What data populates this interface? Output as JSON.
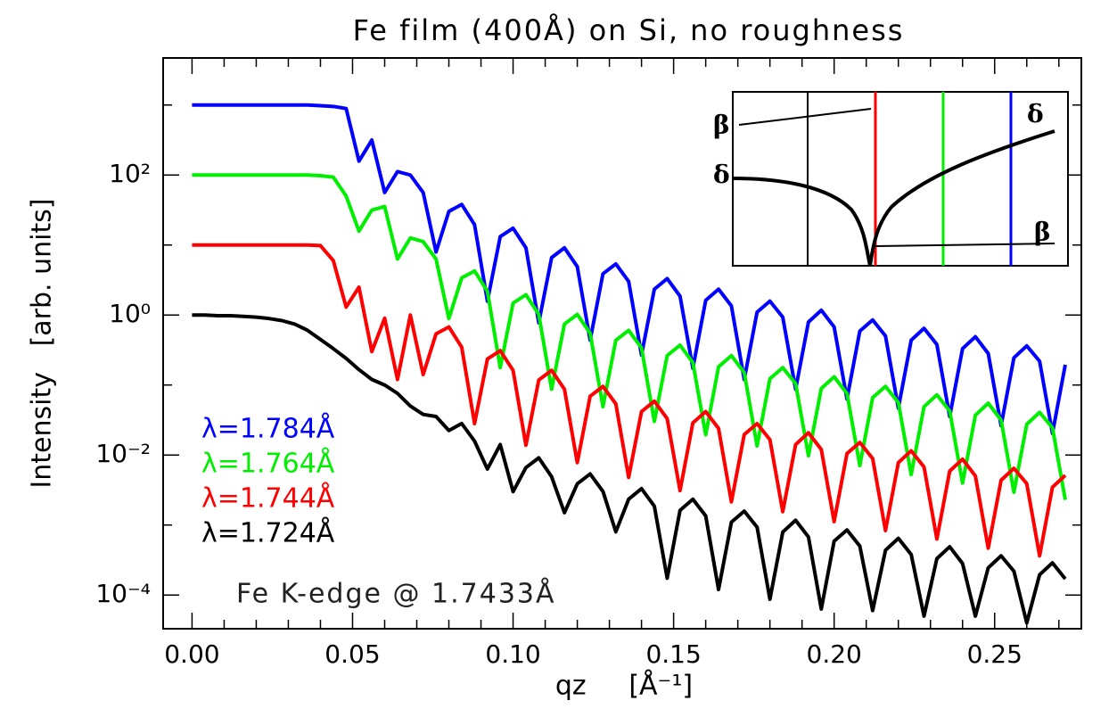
{
  "chart_data": {
    "type": "line",
    "title": "Fe film (400Å) on Si, no roughness",
    "x_label": "qz     [Å⁻¹]",
    "y_label": "Intensity   [arb. units]",
    "annotation": "Fe K-edge @ 1.7433Å",
    "log_y": true,
    "xlim": [
      -0.009,
      0.277
    ],
    "ylim": [
      3.3e-05,
      4700
    ],
    "xticks": [
      {
        "value": 0,
        "label": "0.00"
      },
      {
        "value": 0.05,
        "label": "0.05"
      },
      {
        "value": 0.1,
        "label": "0.10"
      },
      {
        "value": 0.15,
        "label": "0.15"
      },
      {
        "value": 0.2,
        "label": "0.20"
      },
      {
        "value": 0.25,
        "label": "0.25"
      }
    ],
    "xminorticks": [
      0.01,
      0.02,
      0.03,
      0.04,
      0.06,
      0.07,
      0.08,
      0.09,
      0.11,
      0.12,
      0.13,
      0.14,
      0.16,
      0.17,
      0.18,
      0.19,
      0.21,
      0.22,
      0.23,
      0.24,
      0.26,
      0.27
    ],
    "yticks": [
      {
        "value": 0.0001,
        "label": "10⁻⁴"
      },
      {
        "value": 0.01,
        "label": "10⁻²"
      },
      {
        "value": 1,
        "label": "10⁰"
      },
      {
        "value": 100,
        "label": "10²"
      }
    ],
    "yminorticks": [
      0.001,
      0.1,
      10,
      1000
    ],
    "x": [
      0,
      0.004,
      0.008,
      0.012,
      0.016,
      0.02,
      0.024,
      0.028,
      0.032,
      0.036,
      0.04,
      0.044,
      0.048,
      0.052,
      0.056,
      0.06,
      0.064,
      0.068,
      0.072,
      0.076,
      0.08,
      0.084,
      0.088,
      0.092,
      0.096,
      0.1,
      0.104,
      0.108,
      0.112,
      0.116,
      0.12,
      0.124,
      0.128,
      0.132,
      0.136,
      0.14,
      0.144,
      0.148,
      0.152,
      0.156,
      0.16,
      0.164,
      0.168,
      0.172,
      0.176,
      0.18,
      0.184,
      0.188,
      0.192,
      0.196,
      0.2,
      0.204,
      0.208,
      0.212,
      0.216,
      0.22,
      0.224,
      0.228,
      0.232,
      0.236,
      0.24,
      0.244,
      0.248,
      0.252,
      0.256,
      0.26,
      0.264,
      0.268,
      0.272
    ],
    "series": [
      {
        "name": "λ=1.784Å",
        "color": "#0000ff",
        "values": [
          1000,
          1000,
          1000,
          1000,
          1000,
          1000,
          1000,
          1000,
          1000,
          1000,
          977,
          955,
          891,
          158,
          316,
          56.2,
          112,
          100,
          56.2,
          7.94,
          30.2,
          38.0,
          19.5,
          1.58,
          13.2,
          17.4,
          9.12,
          0.776,
          6.61,
          9.12,
          4.9,
          0.437,
          3.89,
          5.37,
          3.02,
          0.269,
          2.34,
          3.31,
          1.86,
          0.174,
          1.62,
          2.34,
          1.35,
          0.12,
          1.1,
          1.58,
          0.933,
          0.0871,
          0.794,
          1.17,
          0.676,
          0.0631,
          0.589,
          0.851,
          0.501,
          0.0468,
          0.437,
          0.646,
          0.38,
          0.0355,
          0.331,
          0.49,
          0.282,
          0.0263,
          0.245,
          0.363,
          0.219,
          0.0204,
          0.195
        ]
      },
      {
        "name": "λ=1.764Å",
        "color": "#00ee00",
        "values": [
          100,
          100,
          100,
          100,
          100,
          100,
          100,
          100,
          100,
          100,
          97.7,
          93.3,
          50.1,
          15.8,
          31.6,
          35.5,
          6.31,
          12.6,
          11.2,
          6.31,
          0.891,
          3.39,
          4.26,
          2.19,
          0.177,
          1.48,
          1.95,
          1.02,
          0.0871,
          0.742,
          1.02,
          0.55,
          0.049,
          0.436,
          0.603,
          0.339,
          0.0302,
          0.263,
          0.371,
          0.209,
          0.0195,
          0.182,
          0.263,
          0.151,
          0.0135,
          0.123,
          0.177,
          0.105,
          0.00977,
          0.0891,
          0.131,
          0.0758,
          0.00708,
          0.0661,
          0.0955,
          0.0562,
          0.00525,
          0.049,
          0.0725,
          0.0426,
          0.00398,
          0.0371,
          0.055,
          0.0316,
          0.00295,
          0.0275,
          0.0407,
          0.0246,
          0.00229
        ]
      },
      {
        "name": "λ=1.744Å",
        "color": "#ff0000",
        "values": [
          10,
          10,
          10,
          10,
          10,
          10,
          10,
          10,
          10,
          10,
          9.8,
          6.0,
          1.3,
          2.5,
          0.3,
          0.9,
          0.12,
          1.0,
          0.141,
          0.538,
          0.676,
          0.347,
          0.0281,
          0.235,
          0.31,
          0.162,
          0.0138,
          0.118,
          0.162,
          0.0872,
          0.00778,
          0.0692,
          0.0956,
          0.0538,
          0.00479,
          0.0417,
          0.0589,
          0.0331,
          0.0031,
          0.0288,
          0.0417,
          0.024,
          0.00214,
          0.0196,
          0.0281,
          0.0166,
          0.00155,
          0.0141,
          0.0208,
          0.012,
          0.00112,
          0.0105,
          0.0151,
          0.00892,
          0.000833,
          0.00778,
          0.0115,
          0.00676,
          0.000632,
          0.00589,
          0.00872,
          0.00502,
          0.000468,
          0.00436,
          0.00646,
          0.0039,
          0.000363,
          0.00347,
          0.00513
        ]
      },
      {
        "name": "λ=1.724Å",
        "color": "#000000",
        "values": [
          1,
          1,
          0.977,
          0.977,
          0.955,
          0.933,
          0.891,
          0.832,
          0.741,
          0.603,
          0.447,
          0.331,
          0.24,
          0.166,
          0.12,
          0.1,
          0.0759,
          0.0501,
          0.038,
          0.0355,
          0.0224,
          0.0282,
          0.0158,
          0.00631,
          0.0141,
          0.003,
          0.00661,
          0.00912,
          0.0049,
          0.0015,
          0.00389,
          0.00537,
          0.00302,
          0.0008,
          0.00234,
          0.00331,
          0.00186,
          0.000174,
          0.00162,
          0.00234,
          0.00135,
          0.00012,
          0.0011,
          0.00158,
          0.000933,
          8.71e-05,
          0.000794,
          0.00117,
          0.000676,
          6.31e-05,
          0.000589,
          0.000851,
          0.000501,
          6e-05,
          0.000437,
          0.000646,
          0.00038,
          5e-05,
          0.000331,
          0.00049,
          0.000282,
          5e-05,
          0.000245,
          0.000363,
          0.000219,
          4e-05,
          0.000195,
          0.000288,
          0.00017
        ]
      }
    ],
    "inset": {
      "labels": [
        "β",
        "δ",
        "δ",
        "β"
      ]
    }
  }
}
